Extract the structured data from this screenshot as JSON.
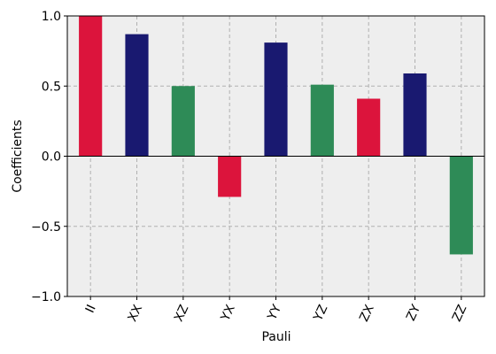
{
  "chart_data": {
    "type": "bar",
    "title": "",
    "xlabel": "Pauli",
    "ylabel": "Coefficients",
    "categories": [
      "II",
      "XX",
      "XZ",
      "YX",
      "YY",
      "YZ",
      "ZX",
      "ZY",
      "ZZ"
    ],
    "values": [
      1.0,
      0.87,
      0.5,
      -0.29,
      0.81,
      0.51,
      0.41,
      0.59,
      -0.7
    ],
    "bar_colors": [
      "#dc143c",
      "#191970",
      "#2e8b57",
      "#dc143c",
      "#191970",
      "#2e8b57",
      "#dc143c",
      "#191970",
      "#2e8b57"
    ],
    "ylim": [
      -1.0,
      1.0
    ],
    "yticks": [
      -1.0,
      -0.5,
      0.0,
      0.5,
      1.0
    ],
    "ytick_labels": [
      "−1.0",
      "−0.5",
      "0.0",
      "0.5",
      "1.0"
    ],
    "grid": true,
    "background_color": "#eeeeee",
    "grid_color": "#b0b0b0",
    "legend": "none"
  }
}
